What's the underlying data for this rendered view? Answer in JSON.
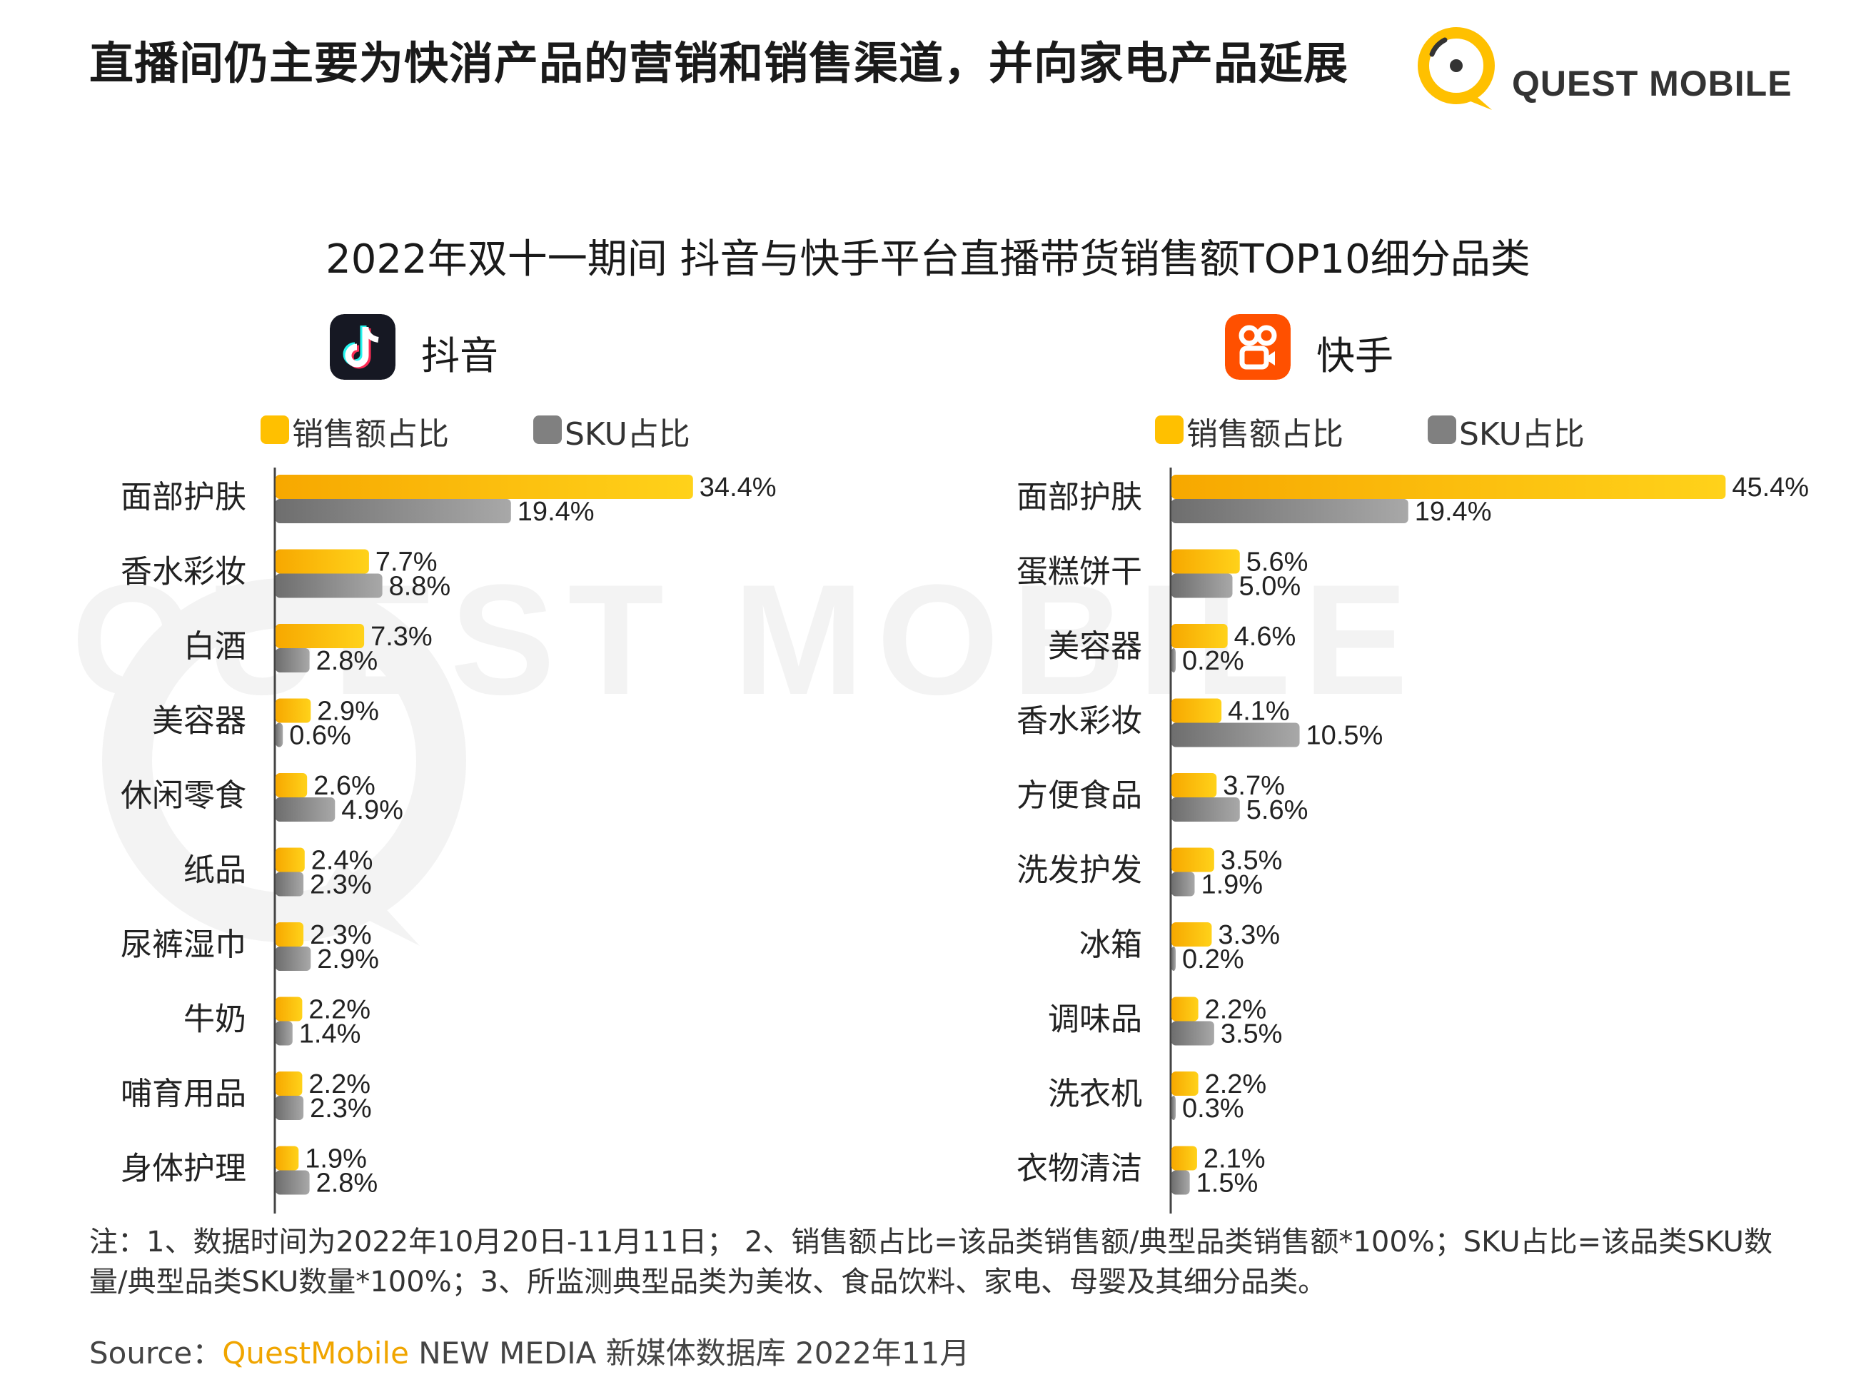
{
  "headline": "直播间仍主要为快消产品的营销和销售渠道，并向家电产品延展",
  "brand": {
    "logo_text": "QUEST MOBILE",
    "watermark_text": "QUEST MOBILE",
    "colors": {
      "accent_yellow": "#ffc000",
      "sku_gray": "#808080",
      "kuaishou_orange": "#ff5000",
      "douyin_black": "#161823"
    }
  },
  "chart_title": "2022年双十一期间 抖音与快手平台直播带货销售额TOP10细分品类",
  "legend": {
    "sales_label": "销售额占比",
    "sku_label": "SKU占比"
  },
  "chart_data": [
    {
      "type": "bar",
      "orientation": "horizontal",
      "platform": "抖音",
      "icon": "douyin-icon",
      "categories": [
        "面部护肤",
        "香水彩妆",
        "白酒",
        "美容器",
        "休闲零食",
        "纸品",
        "尿裤湿巾",
        "牛奶",
        "哺育用品",
        "身体护理"
      ],
      "series": [
        {
          "name": "销售额占比",
          "color": "#ffc000",
          "values": [
            34.4,
            7.7,
            7.3,
            2.9,
            2.6,
            2.4,
            2.3,
            2.2,
            2.2,
            1.9
          ],
          "labels": [
            "34.4%",
            "7.7%",
            "7.3%",
            "2.9%",
            "2.6%",
            "2.4%",
            "2.3%",
            "2.2%",
            "2.2%",
            "1.9%"
          ]
        },
        {
          "name": "SKU占比",
          "color": "#808080",
          "values": [
            19.4,
            8.8,
            2.8,
            0.6,
            4.9,
            2.3,
            2.9,
            1.4,
            2.3,
            2.8
          ],
          "labels": [
            "19.4%",
            "8.8%",
            "2.8%",
            "0.6%",
            "4.9%",
            "2.3%",
            "2.9%",
            "1.4%",
            "2.3%",
            "2.8%"
          ]
        }
      ],
      "unit": "%",
      "legend_position": "top"
    },
    {
      "type": "bar",
      "orientation": "horizontal",
      "platform": "快手",
      "icon": "kuaishou-icon",
      "categories": [
        "面部护肤",
        "蛋糕饼干",
        "美容器",
        "香水彩妆",
        "方便食品",
        "洗发护发",
        "冰箱",
        "调味品",
        "洗衣机",
        "衣物清洁"
      ],
      "series": [
        {
          "name": "销售额占比",
          "color": "#ffc000",
          "values": [
            45.4,
            5.6,
            4.6,
            4.1,
            3.7,
            3.5,
            3.3,
            2.2,
            2.2,
            2.1
          ],
          "labels": [
            "45.4%",
            "5.6%",
            "4.6%",
            "4.1%",
            "3.7%",
            "3.5%",
            "3.3%",
            "2.2%",
            "2.2%",
            "2.1%"
          ]
        },
        {
          "name": "SKU占比",
          "color": "#808080",
          "values": [
            19.4,
            5.0,
            0.2,
            10.5,
            5.6,
            1.9,
            0.2,
            3.5,
            0.3,
            1.5
          ],
          "labels": [
            "19.4%",
            "5.0%",
            "0.2%",
            "10.5%",
            "5.6%",
            "1.9%",
            "0.2%",
            "3.5%",
            "0.3%",
            "1.5%"
          ]
        }
      ],
      "unit": "%",
      "legend_position": "top"
    }
  ],
  "note": "注：1、数据时间为2022年10月20日-11月11日； 2、销售额占比=该品类销售额/典型品类销售额*100%；SKU占比=该品类SKU数量/典型品类SKU数量*100%；3、所监测典型品类为美妆、食品饮料、家电、母婴及其细分品类。",
  "source": {
    "prefix": "Source：",
    "brand": "QuestMobile",
    "rest": " NEW MEDIA 新媒体数据库 2022年11月"
  }
}
